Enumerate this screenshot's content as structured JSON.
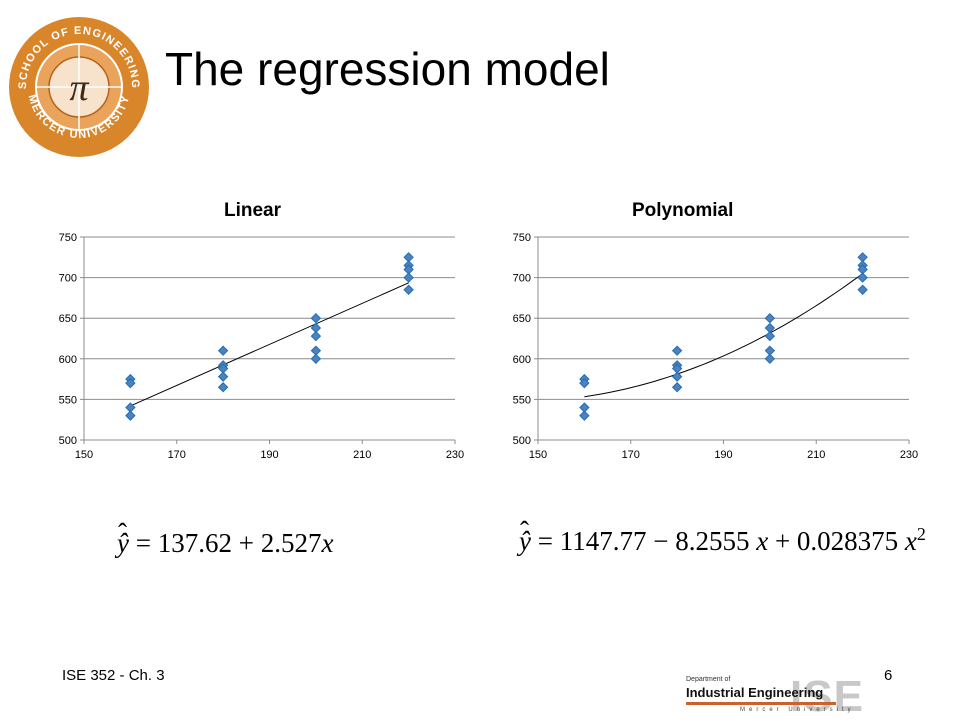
{
  "slide": {
    "title": "The regression model",
    "footer_left": "ISE 352 - Ch. 3",
    "page_number": "6",
    "school_logo": {
      "top_text": "SCHOOL OF ENGINEERING",
      "bottom_text": "MERCER UNIVERSITY",
      "center_symbol": "π",
      "colors": {
        "ring": "#d9862b",
        "inner": "#e9a35a",
        "text": "#ffffff",
        "center": "#f7e3cb"
      }
    },
    "dept_logo": {
      "small_text": "Department of",
      "main_text": "Industrial Engineering",
      "sub_text": "Mercer University",
      "mark": "ISE",
      "colors": {
        "bar": "#c8642a",
        "mark": "#c8c8c8"
      }
    }
  },
  "equations": {
    "linear": {
      "lhs": "ŷ",
      "eq": "=",
      "b0": "137.62",
      "op1": "+",
      "b1": "2.527",
      "var": "x"
    },
    "polynomial": {
      "lhs": "ŷ",
      "eq": "=",
      "b0": "1147.77",
      "op1": "−",
      "b1": "8.2555",
      "var1": "x",
      "op2": "+",
      "b2": "0.028375",
      "var2": "x",
      "exp": "2"
    }
  },
  "chart_data": [
    {
      "type": "scatter",
      "title": "Linear",
      "xlabel": "",
      "ylabel": "",
      "xlim": [
        150,
        230
      ],
      "ylim": [
        500,
        750
      ],
      "xticks": [
        150,
        170,
        190,
        210,
        230
      ],
      "yticks": [
        500,
        550,
        600,
        650,
        700,
        750
      ],
      "grid": true,
      "points": [
        [
          160,
          575
        ],
        [
          160,
          570
        ],
        [
          160,
          540
        ],
        [
          160,
          530
        ],
        [
          180,
          610
        ],
        [
          180,
          592
        ],
        [
          180,
          588
        ],
        [
          180,
          578
        ],
        [
          180,
          565
        ],
        [
          200,
          650
        ],
        [
          200,
          638
        ],
        [
          200,
          628
        ],
        [
          200,
          610
        ],
        [
          200,
          600
        ],
        [
          220,
          725
        ],
        [
          220,
          715
        ],
        [
          220,
          710
        ],
        [
          220,
          700
        ],
        [
          220,
          685
        ]
      ],
      "fit": {
        "kind": "linear",
        "x_range": [
          160,
          220
        ],
        "coefficients": [
          137.62,
          2.527
        ]
      },
      "colors": {
        "marker": "#4f81bd",
        "marker_edge": "#1f6fb5",
        "fit": "#000000",
        "grid": "#8c8c8c",
        "axis": "#8c8c8c"
      }
    },
    {
      "type": "scatter",
      "title": "Polynomial",
      "xlabel": "",
      "ylabel": "",
      "xlim": [
        150,
        230
      ],
      "ylim": [
        500,
        750
      ],
      "xticks": [
        150,
        170,
        190,
        210,
        230
      ],
      "yticks": [
        500,
        550,
        600,
        650,
        700,
        750
      ],
      "grid": true,
      "points": [
        [
          160,
          575
        ],
        [
          160,
          570
        ],
        [
          160,
          540
        ],
        [
          160,
          530
        ],
        [
          180,
          610
        ],
        [
          180,
          592
        ],
        [
          180,
          588
        ],
        [
          180,
          578
        ],
        [
          180,
          565
        ],
        [
          200,
          650
        ],
        [
          200,
          638
        ],
        [
          200,
          628
        ],
        [
          200,
          610
        ],
        [
          200,
          600
        ],
        [
          220,
          725
        ],
        [
          220,
          715
        ],
        [
          220,
          710
        ],
        [
          220,
          700
        ],
        [
          220,
          685
        ]
      ],
      "fit": {
        "kind": "polynomial",
        "x_range": [
          160,
          220
        ],
        "coefficients": [
          1147.77,
          -8.2555,
          0.028375
        ]
      },
      "colors": {
        "marker": "#4f81bd",
        "marker_edge": "#1f6fb5",
        "fit": "#000000",
        "grid": "#8c8c8c",
        "axis": "#8c8c8c"
      }
    }
  ]
}
